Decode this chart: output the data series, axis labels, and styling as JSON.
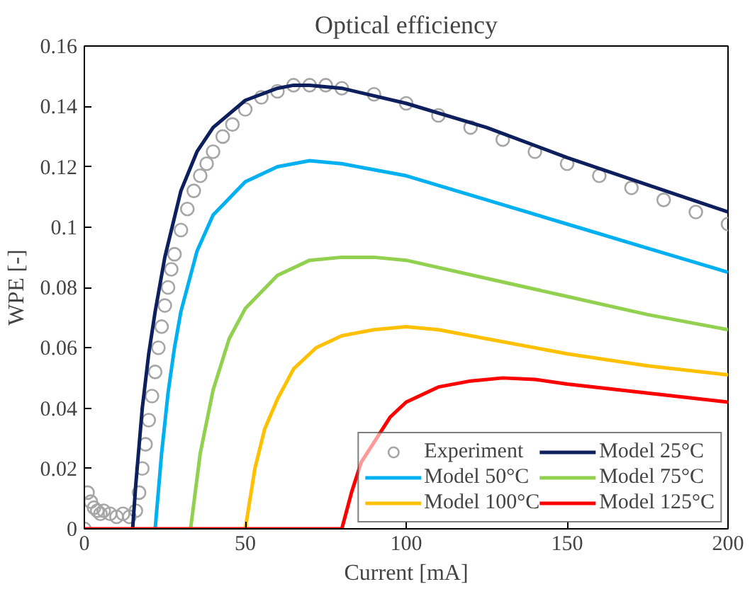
{
  "chart_data": {
    "type": "line",
    "title": "Optical efficiency",
    "xlabel": "Current [mA]",
    "ylabel": "WPE [-]",
    "xlim": [
      0,
      200
    ],
    "xticks": [
      0,
      50,
      100,
      150,
      200
    ],
    "ylim": [
      0,
      0.16
    ],
    "yticks": [
      0,
      0.02,
      0.04,
      0.06,
      0.08,
      0.1,
      0.12,
      0.14,
      0.16
    ],
    "grid": false,
    "legend": "bottom right",
    "line_style": "solid",
    "series": [
      {
        "name": "Experiment",
        "type": "scatter",
        "marker": "circle",
        "color": "#a6a6a6",
        "x": [
          0,
          1,
          2,
          3,
          4,
          5,
          6,
          8,
          10,
          12,
          14,
          16,
          17,
          18,
          19,
          20,
          21,
          22,
          23,
          24,
          25,
          26,
          27,
          28,
          30,
          32,
          34,
          36,
          38,
          40,
          43,
          46,
          50,
          55,
          60,
          65,
          70,
          75,
          80,
          90,
          100,
          110,
          120,
          130,
          140,
          150,
          160,
          170,
          180,
          190,
          200
        ],
        "values": [
          0.0,
          0.012,
          0.009,
          0.007,
          0.006,
          0.005,
          0.006,
          0.005,
          0.004,
          0.005,
          0.004,
          0.006,
          0.012,
          0.02,
          0.028,
          0.036,
          0.044,
          0.052,
          0.06,
          0.067,
          0.074,
          0.08,
          0.086,
          0.091,
          0.099,
          0.106,
          0.112,
          0.117,
          0.121,
          0.125,
          0.13,
          0.134,
          0.139,
          0.143,
          0.145,
          0.147,
          0.147,
          0.147,
          0.146,
          0.144,
          0.141,
          0.137,
          0.133,
          0.129,
          0.125,
          0.121,
          0.117,
          0.113,
          0.109,
          0.105,
          0.101
        ]
      },
      {
        "name": "Model 25°C",
        "color": "#0d1f5c",
        "x": [
          15,
          16,
          18,
          20,
          22,
          25,
          30,
          35,
          40,
          50,
          60,
          65,
          70,
          80,
          100,
          125,
          150,
          175,
          200
        ],
        "values": [
          0,
          0.015,
          0.04,
          0.058,
          0.072,
          0.09,
          0.112,
          0.125,
          0.133,
          0.142,
          0.146,
          0.147,
          0.147,
          0.146,
          0.141,
          0.133,
          0.123,
          0.114,
          0.105
        ]
      },
      {
        "name": "Model 50°C",
        "color": "#00b0f0",
        "x": [
          22,
          24,
          26,
          28,
          30,
          35,
          40,
          50,
          60,
          70,
          80,
          100,
          125,
          150,
          175,
          200
        ],
        "values": [
          0,
          0.025,
          0.045,
          0.06,
          0.072,
          0.092,
          0.104,
          0.115,
          0.12,
          0.122,
          0.121,
          0.117,
          0.109,
          0.101,
          0.093,
          0.085
        ]
      },
      {
        "name": "Model 75°C",
        "color": "#92d050",
        "x": [
          33,
          36,
          40,
          45,
          50,
          60,
          70,
          80,
          90,
          100,
          125,
          150,
          175,
          200
        ],
        "values": [
          0,
          0.025,
          0.046,
          0.063,
          0.073,
          0.084,
          0.089,
          0.09,
          0.09,
          0.089,
          0.083,
          0.077,
          0.071,
          0.066
        ]
      },
      {
        "name": "Model 100°C",
        "color": "#ffc000",
        "x": [
          50,
          53,
          56,
          60,
          65,
          72,
          80,
          90,
          100,
          110,
          125,
          150,
          175,
          200
        ],
        "values": [
          0,
          0.02,
          0.033,
          0.043,
          0.053,
          0.06,
          0.064,
          0.066,
          0.067,
          0.066,
          0.063,
          0.058,
          0.054,
          0.051
        ]
      },
      {
        "name": "Model 125°C",
        "color": "#ff0000",
        "x": [
          0,
          80,
          83,
          86,
          95,
          100,
          110,
          120,
          130,
          140,
          150,
          175,
          200
        ],
        "values": [
          0,
          0,
          0.012,
          0.022,
          0.037,
          0.042,
          0.047,
          0.049,
          0.05,
          0.0495,
          0.048,
          0.045,
          0.042
        ]
      }
    ]
  }
}
